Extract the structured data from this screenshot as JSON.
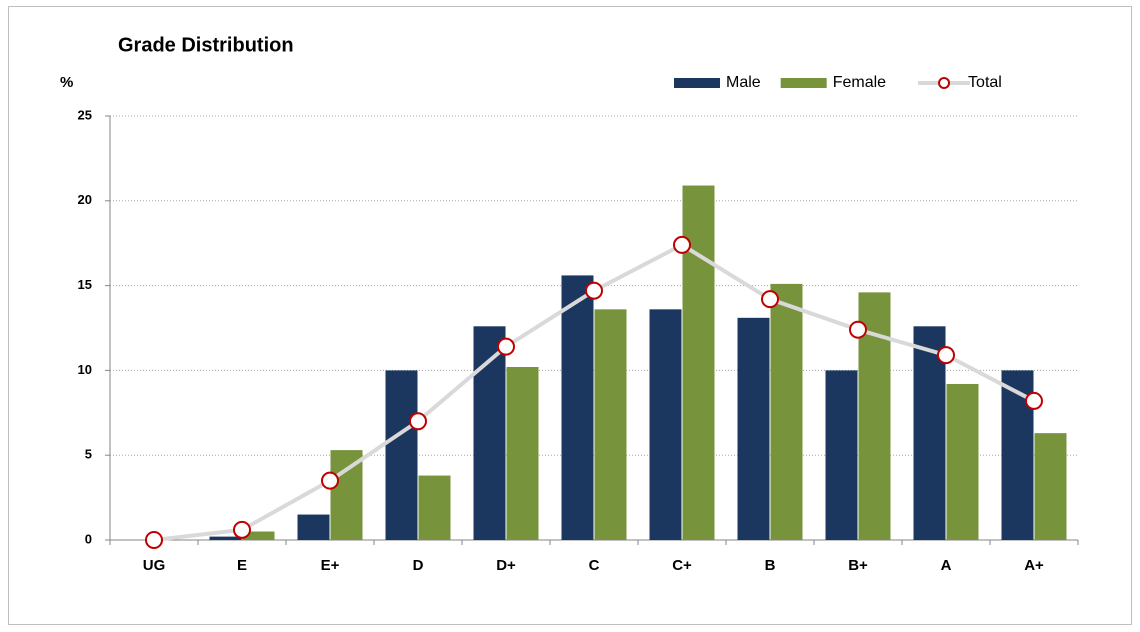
{
  "chart_data": {
    "type": "bar",
    "title": "Grade Distribution",
    "y_label": "%",
    "categories": [
      "UG",
      "E",
      "E+",
      "D",
      "D+",
      "C",
      "C+",
      "B",
      "B+",
      "A",
      "A+"
    ],
    "series": [
      {
        "name": "Male",
        "type": "bar",
        "color": "#1b365f",
        "values": [
          0,
          0.2,
          1.5,
          10.0,
          12.6,
          15.6,
          13.6,
          13.1,
          10.0,
          12.6,
          10.0
        ]
      },
      {
        "name": "Female",
        "type": "bar",
        "color": "#77933c",
        "values": [
          0,
          0.5,
          5.3,
          3.8,
          10.2,
          13.6,
          20.9,
          15.1,
          14.6,
          9.2,
          6.3
        ]
      },
      {
        "name": "Total",
        "type": "line",
        "color": "#d9d9d9",
        "marker_color": "#c00000",
        "values": [
          0,
          0.6,
          3.5,
          7.0,
          11.4,
          14.7,
          17.4,
          14.2,
          12.4,
          10.9,
          8.2
        ]
      }
    ],
    "ylim": [
      0,
      25
    ],
    "yticks": [
      0,
      5,
      10,
      15,
      20,
      25
    ],
    "grid": true,
    "legend": "top-right"
  }
}
